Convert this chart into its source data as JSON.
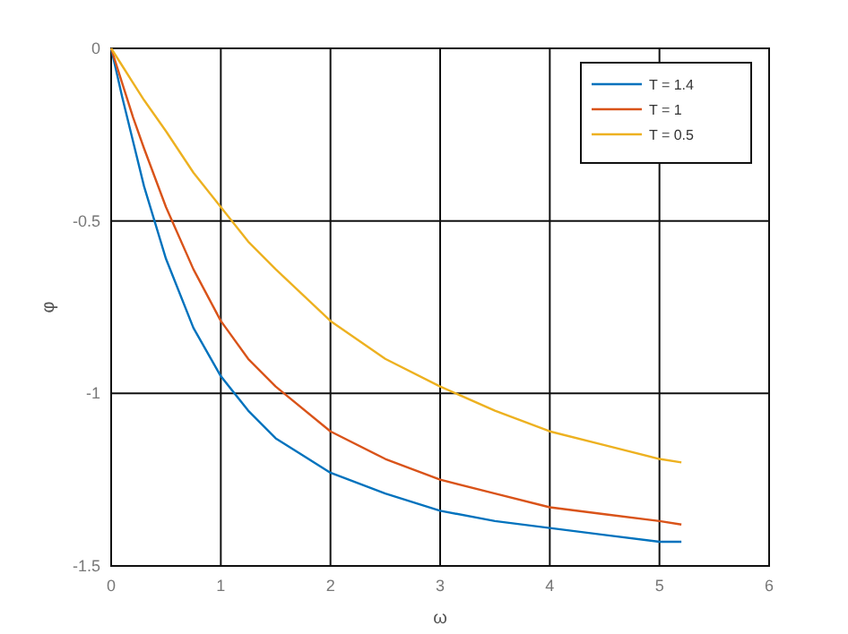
{
  "chart_data": {
    "type": "line",
    "xlabel": "ω",
    "ylabel": "φ",
    "x": [
      0,
      0.1,
      0.2,
      0.3,
      0.5,
      0.75,
      1,
      1.25,
      1.5,
      2,
      2.5,
      3,
      3.5,
      4,
      4.5,
      5,
      5.2
    ],
    "series": [
      {
        "name": "T = 1.4",
        "color": "#0072bd",
        "values": [
          0,
          -0.14,
          -0.27,
          -0.4,
          -0.61,
          -0.81,
          -0.95,
          -1.05,
          -1.13,
          -1.23,
          -1.29,
          -1.34,
          -1.37,
          -1.39,
          -1.41,
          -1.43,
          -1.43
        ]
      },
      {
        "name": "T = 1",
        "color": "#d95319",
        "values": [
          0,
          -0.1,
          -0.2,
          -0.29,
          -0.46,
          -0.64,
          -0.79,
          -0.9,
          -0.98,
          -1.11,
          -1.19,
          -1.25,
          -1.29,
          -1.33,
          -1.35,
          -1.37,
          -1.38
        ]
      },
      {
        "name": "T = 0.5",
        "color": "#edb120",
        "values": [
          0,
          -0.05,
          -0.1,
          -0.15,
          -0.24,
          -0.36,
          -0.46,
          -0.56,
          -0.64,
          -0.79,
          -0.9,
          -0.98,
          -1.05,
          -1.11,
          -1.15,
          -1.19,
          -1.2
        ]
      }
    ],
    "xlim": [
      0,
      6
    ],
    "xticks": [
      0,
      1,
      2,
      3,
      4,
      5,
      6
    ],
    "ylim": [
      -1.5,
      0
    ],
    "yticks": [
      0,
      -0.5,
      -1,
      -1.5
    ],
    "grid": true,
    "legend": "top right",
    "marker": "none",
    "line_style": "solid"
  }
}
